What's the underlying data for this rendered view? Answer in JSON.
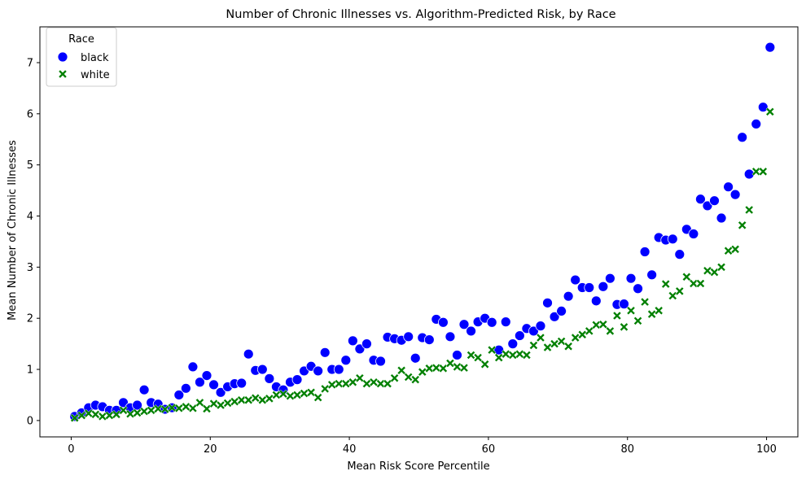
{
  "chart_data": {
    "type": "scatter",
    "title": "Number of Chronic Illnesses vs. Algorithm-Predicted Risk, by Race",
    "xlabel": "Mean Risk Score Percentile",
    "ylabel": "Mean Number of Chronic Illnesses",
    "xlim": [
      -4.5,
      104.5
    ],
    "ylim": [
      -0.32,
      7.7
    ],
    "xticks": [
      0,
      20,
      40,
      60,
      80,
      100
    ],
    "yticks": [
      0,
      1,
      2,
      3,
      4,
      5,
      6,
      7
    ],
    "grid": false,
    "legend": {
      "title": "Race",
      "placement": "top-left"
    },
    "series": [
      {
        "name": "black",
        "marker": "circle",
        "color": "#0000ff",
        "points": [
          [
            0.5,
            0.08
          ],
          [
            1.5,
            0.15
          ],
          [
            2.5,
            0.25
          ],
          [
            3.5,
            0.3
          ],
          [
            4.5,
            0.27
          ],
          [
            5.5,
            0.2
          ],
          [
            6.5,
            0.2
          ],
          [
            7.5,
            0.35
          ],
          [
            8.5,
            0.25
          ],
          [
            9.5,
            0.3
          ],
          [
            10.5,
            0.6
          ],
          [
            11.5,
            0.35
          ],
          [
            12.5,
            0.32
          ],
          [
            13.5,
            0.22
          ],
          [
            14.5,
            0.25
          ],
          [
            15.5,
            0.5
          ],
          [
            16.5,
            0.63
          ],
          [
            17.5,
            1.05
          ],
          [
            18.5,
            0.75
          ],
          [
            19.5,
            0.88
          ],
          [
            20.5,
            0.7
          ],
          [
            21.5,
            0.55
          ],
          [
            22.5,
            0.66
          ],
          [
            23.5,
            0.72
          ],
          [
            24.5,
            0.73
          ],
          [
            25.5,
            1.3
          ],
          [
            26.5,
            0.98
          ],
          [
            27.5,
            1.0
          ],
          [
            28.5,
            0.82
          ],
          [
            29.5,
            0.66
          ],
          [
            30.5,
            0.6
          ],
          [
            31.5,
            0.75
          ],
          [
            32.5,
            0.8
          ],
          [
            33.5,
            0.97
          ],
          [
            34.5,
            1.06
          ],
          [
            35.5,
            0.97
          ],
          [
            36.5,
            1.33
          ],
          [
            37.5,
            1.0
          ],
          [
            38.5,
            1.0
          ],
          [
            39.5,
            1.18
          ],
          [
            40.5,
            1.56
          ],
          [
            41.5,
            1.4
          ],
          [
            42.5,
            1.5
          ],
          [
            43.5,
            1.18
          ],
          [
            44.5,
            1.16
          ],
          [
            45.5,
            1.63
          ],
          [
            46.5,
            1.6
          ],
          [
            47.5,
            1.57
          ],
          [
            48.5,
            1.64
          ],
          [
            49.5,
            1.22
          ],
          [
            50.5,
            1.62
          ],
          [
            51.5,
            1.58
          ],
          [
            52.5,
            1.98
          ],
          [
            53.5,
            1.92
          ],
          [
            54.5,
            1.64
          ],
          [
            55.5,
            1.28
          ],
          [
            56.5,
            1.88
          ],
          [
            57.5,
            1.75
          ],
          [
            58.5,
            1.93
          ],
          [
            59.5,
            2.0
          ],
          [
            60.5,
            1.92
          ],
          [
            61.5,
            1.38
          ],
          [
            62.5,
            1.93
          ],
          [
            63.5,
            1.5
          ],
          [
            64.5,
            1.66
          ],
          [
            65.5,
            1.8
          ],
          [
            66.5,
            1.75
          ],
          [
            67.5,
            1.85
          ],
          [
            68.5,
            2.3
          ],
          [
            69.5,
            2.03
          ],
          [
            70.5,
            2.14
          ],
          [
            71.5,
            2.43
          ],
          [
            72.5,
            2.75
          ],
          [
            73.5,
            2.6
          ],
          [
            74.5,
            2.6
          ],
          [
            75.5,
            2.34
          ],
          [
            76.5,
            2.62
          ],
          [
            77.5,
            2.78
          ],
          [
            78.5,
            2.27
          ],
          [
            79.5,
            2.28
          ],
          [
            80.5,
            2.78
          ],
          [
            81.5,
            2.58
          ],
          [
            82.5,
            3.3
          ],
          [
            83.5,
            2.85
          ],
          [
            84.5,
            3.58
          ],
          [
            85.5,
            3.53
          ],
          [
            86.5,
            3.55
          ],
          [
            87.5,
            3.25
          ],
          [
            88.5,
            3.74
          ],
          [
            89.5,
            3.65
          ],
          [
            90.5,
            4.33
          ],
          [
            91.5,
            4.2
          ],
          [
            92.5,
            4.3
          ],
          [
            93.5,
            3.96
          ],
          [
            94.5,
            4.57
          ],
          [
            95.5,
            4.42
          ],
          [
            96.5,
            5.54
          ],
          [
            97.5,
            4.82
          ],
          [
            98.5,
            5.8
          ],
          [
            99.5,
            6.13
          ],
          [
            100.5,
            7.3
          ]
        ]
      },
      {
        "name": "white",
        "marker": "x",
        "color": "#008000",
        "points": [
          [
            0.5,
            0.05
          ],
          [
            1.5,
            0.1
          ],
          [
            2.5,
            0.14
          ],
          [
            3.5,
            0.12
          ],
          [
            4.5,
            0.08
          ],
          [
            5.5,
            0.1
          ],
          [
            6.5,
            0.12
          ],
          [
            7.5,
            0.2
          ],
          [
            8.5,
            0.13
          ],
          [
            9.5,
            0.15
          ],
          [
            10.5,
            0.18
          ],
          [
            11.5,
            0.2
          ],
          [
            12.5,
            0.23
          ],
          [
            13.5,
            0.22
          ],
          [
            14.5,
            0.25
          ],
          [
            15.5,
            0.24
          ],
          [
            16.5,
            0.27
          ],
          [
            17.5,
            0.24
          ],
          [
            18.5,
            0.35
          ],
          [
            19.5,
            0.23
          ],
          [
            20.5,
            0.33
          ],
          [
            21.5,
            0.3
          ],
          [
            22.5,
            0.34
          ],
          [
            23.5,
            0.37
          ],
          [
            24.5,
            0.4
          ],
          [
            25.5,
            0.4
          ],
          [
            26.5,
            0.44
          ],
          [
            27.5,
            0.4
          ],
          [
            28.5,
            0.43
          ],
          [
            29.5,
            0.5
          ],
          [
            30.5,
            0.52
          ],
          [
            31.5,
            0.48
          ],
          [
            32.5,
            0.5
          ],
          [
            33.5,
            0.53
          ],
          [
            34.5,
            0.55
          ],
          [
            35.5,
            0.45
          ],
          [
            36.5,
            0.62
          ],
          [
            37.5,
            0.7
          ],
          [
            38.5,
            0.72
          ],
          [
            39.5,
            0.72
          ],
          [
            40.5,
            0.75
          ],
          [
            41.5,
            0.83
          ],
          [
            42.5,
            0.72
          ],
          [
            43.5,
            0.75
          ],
          [
            44.5,
            0.72
          ],
          [
            45.5,
            0.72
          ],
          [
            46.5,
            0.83
          ],
          [
            47.5,
            0.98
          ],
          [
            48.5,
            0.85
          ],
          [
            49.5,
            0.8
          ],
          [
            50.5,
            0.95
          ],
          [
            51.5,
            1.02
          ],
          [
            52.5,
            1.03
          ],
          [
            53.5,
            1.02
          ],
          [
            54.5,
            1.12
          ],
          [
            55.5,
            1.05
          ],
          [
            56.5,
            1.03
          ],
          [
            57.5,
            1.28
          ],
          [
            58.5,
            1.23
          ],
          [
            59.5,
            1.1
          ],
          [
            60.5,
            1.38
          ],
          [
            61.5,
            1.23
          ],
          [
            62.5,
            1.3
          ],
          [
            63.5,
            1.28
          ],
          [
            64.5,
            1.3
          ],
          [
            65.5,
            1.28
          ],
          [
            66.5,
            1.47
          ],
          [
            67.5,
            1.62
          ],
          [
            68.5,
            1.43
          ],
          [
            69.5,
            1.5
          ],
          [
            70.5,
            1.55
          ],
          [
            71.5,
            1.45
          ],
          [
            72.5,
            1.62
          ],
          [
            73.5,
            1.68
          ],
          [
            74.5,
            1.75
          ],
          [
            75.5,
            1.87
          ],
          [
            76.5,
            1.88
          ],
          [
            77.5,
            1.75
          ],
          [
            78.5,
            2.05
          ],
          [
            79.5,
            1.83
          ],
          [
            80.5,
            2.15
          ],
          [
            81.5,
            1.95
          ],
          [
            82.5,
            2.32
          ],
          [
            83.5,
            2.08
          ],
          [
            84.5,
            2.15
          ],
          [
            85.5,
            2.67
          ],
          [
            86.5,
            2.44
          ],
          [
            87.5,
            2.53
          ],
          [
            88.5,
            2.81
          ],
          [
            89.5,
            2.68
          ],
          [
            90.5,
            2.68
          ],
          [
            91.5,
            2.93
          ],
          [
            92.5,
            2.9
          ],
          [
            93.5,
            3.0
          ],
          [
            94.5,
            3.32
          ],
          [
            95.5,
            3.35
          ],
          [
            96.5,
            3.82
          ],
          [
            97.5,
            4.12
          ],
          [
            98.5,
            4.87
          ],
          [
            99.5,
            4.87
          ],
          [
            100.5,
            6.04
          ]
        ]
      }
    ]
  }
}
